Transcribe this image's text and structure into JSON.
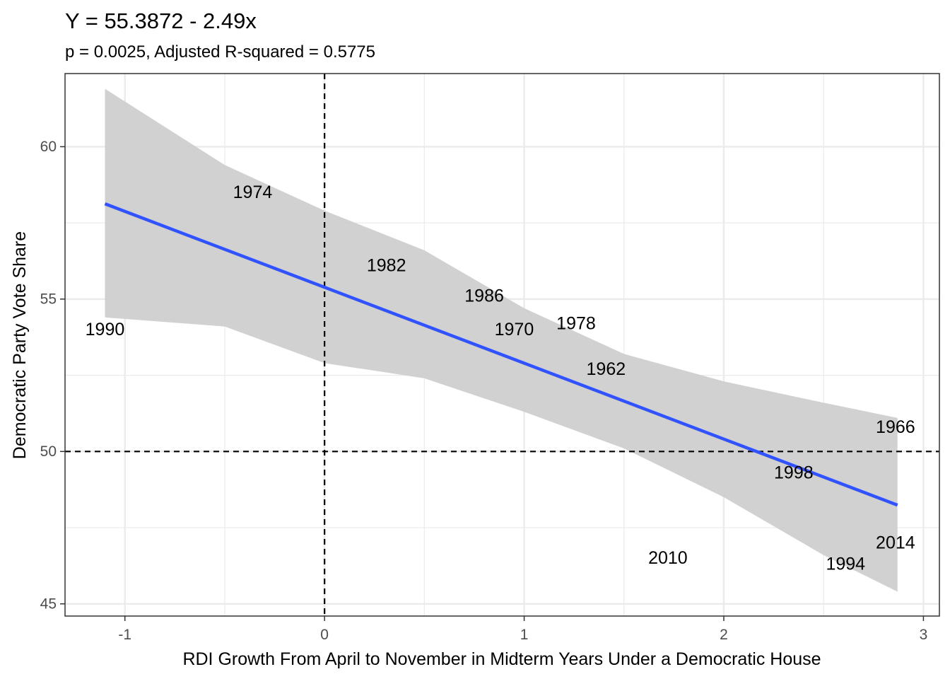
{
  "chart_data": {
    "type": "scatter",
    "title": "Y = 55.3872 - 2.49x",
    "subtitle": "p = 0.0025, Adjusted R-squared = 0.5775",
    "xlabel": "RDI Growth From April to November in Midterm Years Under a Democratic House",
    "ylabel": "Democratic Party Vote Share",
    "xlim": [
      -1.3,
      3.08
    ],
    "ylim": [
      44.6,
      62.4
    ],
    "x_ticks": [
      -1,
      0,
      1,
      2,
      3
    ],
    "x_tick_labels": [
      "-1",
      "0",
      "1",
      "2",
      "3"
    ],
    "y_ticks": [
      45,
      50,
      55,
      60
    ],
    "y_tick_labels": [
      "45",
      "50",
      "55",
      "60"
    ],
    "grid": true,
    "reference_lines": {
      "x": 0,
      "y": 50
    },
    "points": [
      {
        "label": "1990",
        "x": -1.1,
        "y": 54.0
      },
      {
        "label": "1974",
        "x": -0.36,
        "y": 58.5
      },
      {
        "label": "1982",
        "x": 0.31,
        "y": 56.1
      },
      {
        "label": "1986",
        "x": 0.8,
        "y": 55.1
      },
      {
        "label": "1970",
        "x": 0.95,
        "y": 54.0
      },
      {
        "label": "1978",
        "x": 1.26,
        "y": 54.2
      },
      {
        "label": "1962",
        "x": 1.41,
        "y": 52.7
      },
      {
        "label": "1966",
        "x": 2.86,
        "y": 50.8
      },
      {
        "label": "1998",
        "x": 2.35,
        "y": 49.3
      },
      {
        "label": "2010",
        "x": 1.72,
        "y": 46.5
      },
      {
        "label": "1994",
        "x": 2.61,
        "y": 46.3
      },
      {
        "label": "2014",
        "x": 2.86,
        "y": 47.0
      }
    ],
    "fit": {
      "intercept": 55.3872,
      "slope": -2.49,
      "x_range": [
        -1.1,
        2.87
      ]
    },
    "confidence_band": {
      "x": [
        -1.1,
        -0.5,
        0.0,
        0.5,
        1.0,
        1.5,
        2.0,
        2.5,
        2.87
      ],
      "upper": [
        61.9,
        59.4,
        57.9,
        56.6,
        54.7,
        53.2,
        52.3,
        51.6,
        51.1
      ],
      "lower": [
        54.4,
        54.1,
        52.9,
        52.4,
        51.3,
        50.1,
        48.5,
        46.6,
        45.4
      ]
    },
    "colors": {
      "fit_line": "#3152ff",
      "band": "#cfcfcf",
      "grid": "#ebebeb",
      "reference": "#000000",
      "panel_border": "#333333"
    }
  }
}
